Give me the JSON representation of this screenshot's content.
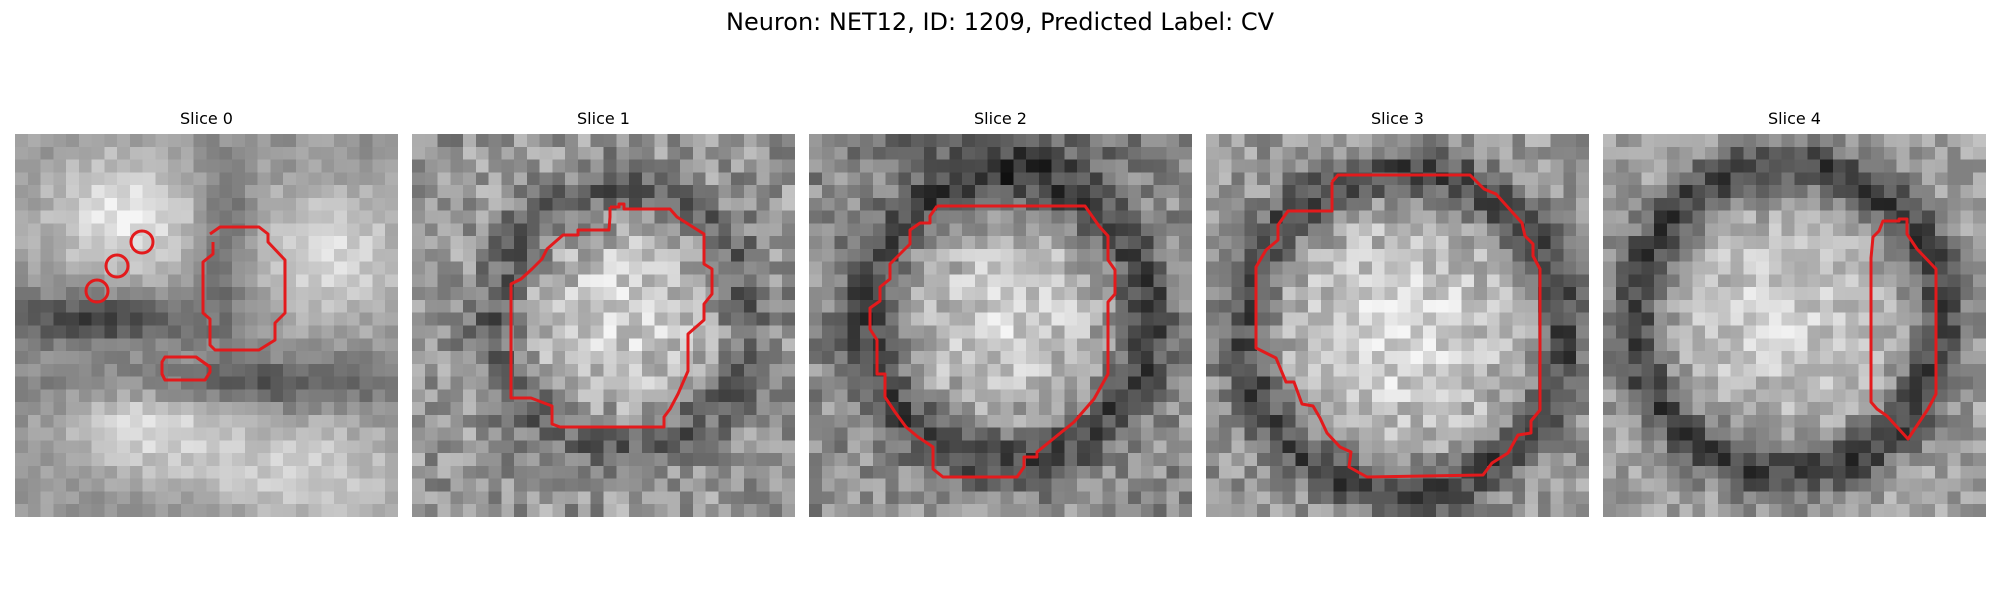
{
  "figure": {
    "title": "Neuron: NET12, ID: 1209, Predicted Label: CV",
    "contour_color": "#e31a1c",
    "grid_size": 30
  },
  "panels": [
    {
      "title": "Slice 0"
    },
    {
      "title": "Slice 1"
    },
    {
      "title": "Slice 2"
    },
    {
      "title": "Slice 3"
    },
    {
      "title": "Slice 4"
    }
  ]
}
